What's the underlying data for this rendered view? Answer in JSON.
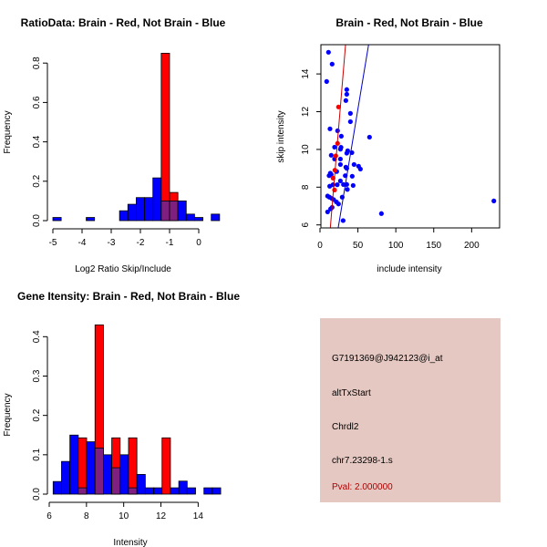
{
  "chart_data": [
    {
      "type": "bar",
      "title": "RatioData: Brain - Red, Not Brain - Blue",
      "xlabel": "Log2 Ratio Skip/Include",
      "ylabel": "Frequency",
      "xticks": [
        -5,
        -4,
        -3,
        -2,
        -1,
        0
      ],
      "yticks": [
        "0.0",
        "0.2",
        "0.4",
        "0.6",
        "0.8"
      ],
      "ylim": [
        0,
        0.8
      ],
      "bin_start": -5,
      "bin_width": 0.2857,
      "series": [
        {
          "name": "Not Brain",
          "color": "#0000ff",
          "values": [
            0.016,
            0,
            0,
            0,
            0.016,
            0,
            0,
            0,
            0.05,
            0.083,
            0.117,
            0.117,
            0.217,
            0.1,
            0.1,
            0.1,
            0.033,
            0.016,
            0,
            0.033
          ]
        },
        {
          "name": "Brain",
          "color": "#ff0000",
          "values": [
            0,
            0,
            0,
            0,
            0,
            0,
            0,
            0,
            0,
            0,
            0,
            0,
            0,
            0.85,
            0.143,
            0,
            0,
            0,
            0,
            0
          ]
        }
      ],
      "overlap_color": "#7f1f80"
    },
    {
      "type": "scatter",
      "title": "Brain - Red, Not Brain - Blue",
      "xlabel": "include intensity",
      "ylabel": "skip intensity",
      "xticks": [
        0,
        50,
        100,
        150,
        200
      ],
      "yticks": [
        6,
        8,
        10,
        12,
        14
      ],
      "xlim": [
        -1,
        237
      ],
      "ylim": [
        5.84,
        15.55
      ],
      "series": [
        {
          "name": "Not Brain",
          "color": "#0000ff",
          "points": [
            [
              11.2,
              15.15
            ],
            [
              16,
              14.52
            ],
            [
              8.8,
              13.6
            ],
            [
              35.3,
              13.17
            ],
            [
              35.3,
              12.92
            ],
            [
              34.1,
              12.59
            ],
            [
              40.1,
              11.91
            ],
            [
              40.1,
              11.47
            ],
            [
              13.2,
              11.09
            ],
            [
              23.2,
              10.99
            ],
            [
              28.1,
              10.7
            ],
            [
              65.3,
              10.65
            ],
            [
              19.2,
              10.12
            ],
            [
              27.7,
              10.11
            ],
            [
              26.9,
              10.01
            ],
            [
              14.8,
              9.69
            ],
            [
              35.3,
              9.8
            ],
            [
              36.5,
              9.93
            ],
            [
              42.1,
              9.83
            ],
            [
              19.2,
              9.49
            ],
            [
              26.9,
              9.49
            ],
            [
              26.9,
              9.2
            ],
            [
              44.9,
              9.2
            ],
            [
              34.1,
              9.06
            ],
            [
              35.3,
              9
            ],
            [
              50.9,
              9.11
            ],
            [
              53.3,
              8.96
            ],
            [
              22,
              8.83
            ],
            [
              33.3,
              8.61
            ],
            [
              42.5,
              8.58
            ],
            [
              12,
              8.61
            ],
            [
              13.6,
              8.74
            ],
            [
              14.8,
              8.67
            ],
            [
              26.9,
              8.33
            ],
            [
              12.8,
              8.05
            ],
            [
              17.2,
              8.13
            ],
            [
              22.8,
              8.13
            ],
            [
              30.9,
              8.14
            ],
            [
              35.3,
              8.14
            ],
            [
              43.7,
              8.09
            ],
            [
              36.1,
              7.88
            ],
            [
              10,
              7.53
            ],
            [
              12.4,
              7.47
            ],
            [
              15.6,
              7.4
            ],
            [
              29.3,
              7.47
            ],
            [
              21.6,
              7.22
            ],
            [
              24.4,
              7.11
            ],
            [
              18,
              7.34
            ],
            [
              14,
              6.85
            ],
            [
              10,
              6.69
            ],
            [
              16,
              6.93
            ],
            [
              30.5,
              6.23
            ],
            [
              81,
              6.6
            ],
            [
              229.3,
              7.27
            ]
          ],
          "fit_line": [
            [
              24.0,
              5.84
            ],
            [
              64.1,
              15.55
            ]
          ]
        },
        {
          "name": "Brain",
          "color": "#ff0000",
          "points": [
            [
              24.4,
              12.25
            ],
            [
              23.2,
              10.32
            ],
            [
              20.8,
              9.66
            ],
            [
              19.6,
              8.9
            ],
            [
              17.2,
              8.48
            ],
            [
              19.2,
              7.85
            ]
          ],
          "fit_line": [
            [
              13.6,
              5.84
            ],
            [
              33.7,
              15.55
            ]
          ]
        }
      ]
    },
    {
      "type": "bar",
      "title": "Gene Itensity: Brain - Red, Not Brain - Blue",
      "xlabel": "Intensity",
      "ylabel": "Frequency",
      "xticks": [
        6,
        8,
        10,
        12,
        14
      ],
      "yticks": [
        "0.0",
        "0.1",
        "0.2",
        "0.3",
        "0.4"
      ],
      "ylim": [
        0,
        0.4
      ],
      "bin_start": 6.21,
      "bin_width": 0.45,
      "series": [
        {
          "name": "Not Brain",
          "color": "#0000ff",
          "values": [
            0.032,
            0.083,
            0.15,
            0.016,
            0.133,
            0.117,
            0.1,
            0.067,
            0.1,
            0.016,
            0.05,
            0.016,
            0.016,
            0,
            0.016,
            0.033,
            0.016,
            0,
            0.016,
            0.016
          ]
        },
        {
          "name": "Brain",
          "color": "#ff0000",
          "values": [
            0,
            0,
            0,
            0.143,
            0,
            0.43,
            0,
            0.143,
            0,
            0.143,
            0,
            0,
            0,
            0.143,
            0,
            0,
            0,
            0,
            0,
            0
          ]
        }
      ],
      "overlap_color": "#7f1f80"
    }
  ],
  "info_panel": {
    "background": "#e6c8c2",
    "probe_id": "G7191369@J942123@i_at",
    "event_type": "altTxStart",
    "gene": "Chrdl2",
    "location": "chr7.23298-1.s",
    "pval": "Pval: 2.000000",
    "pval_color": "#b00000"
  }
}
